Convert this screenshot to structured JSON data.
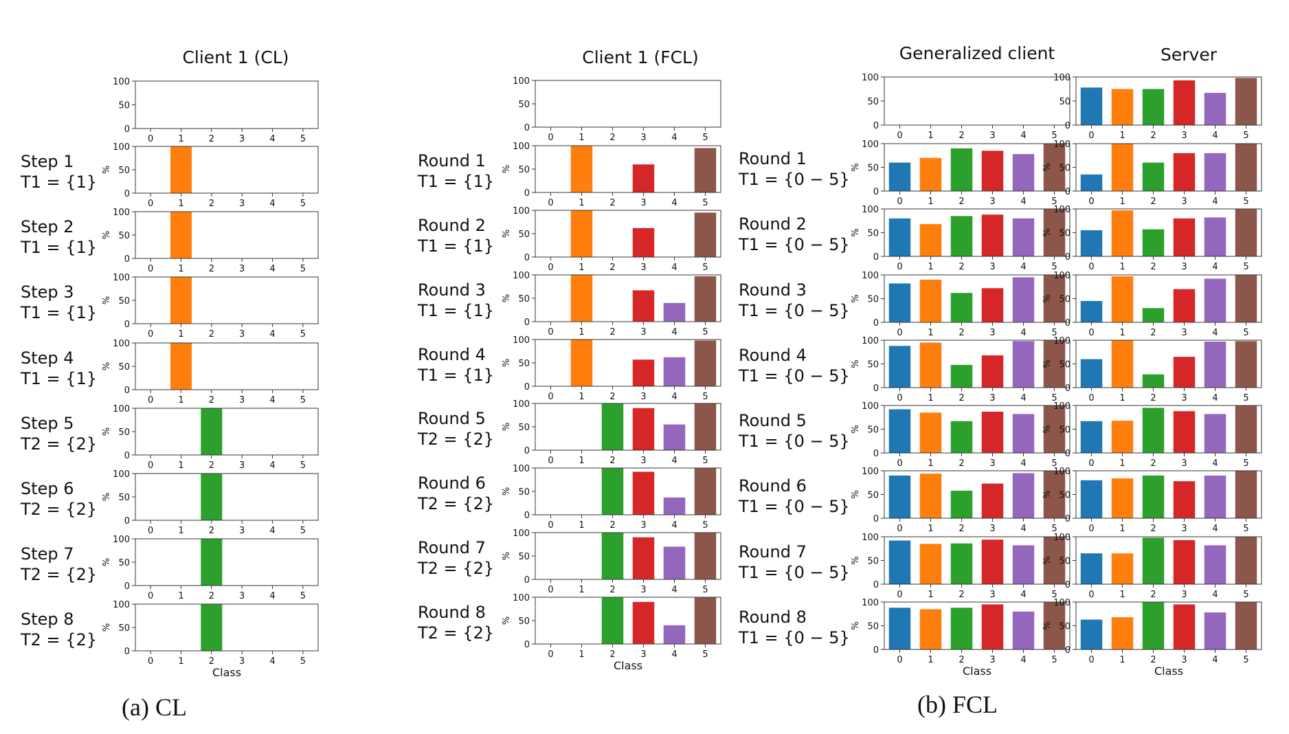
{
  "chart_data": {
    "type": "bar",
    "categories": [
      "0",
      "1",
      "2",
      "3",
      "4",
      "5"
    ],
    "ylim": [
      0,
      100
    ],
    "yticks": [
      0,
      50,
      100
    ],
    "ylabel": "%",
    "xlabel": "Class",
    "colors": [
      "#1f77b4",
      "#ff7f0e",
      "#2ca02c",
      "#d62728",
      "#9467bd",
      "#8c564b"
    ],
    "columns": [
      {
        "id": "cl",
        "title": "Client 1 (CL)",
        "initial": [
          0,
          0,
          0,
          0,
          0,
          0
        ],
        "rows": [
          {
            "label": "Step 1",
            "task": "T1 = {1}",
            "values": [
              0,
              100,
              0,
              0,
              0,
              0
            ]
          },
          {
            "label": "Step 2",
            "task": "T1 = {1}",
            "values": [
              0,
              100,
              0,
              0,
              0,
              0
            ]
          },
          {
            "label": "Step 3",
            "task": "T1 = {1}",
            "values": [
              0,
              100,
              0,
              0,
              0,
              0
            ]
          },
          {
            "label": "Step 4",
            "task": "T1 = {1}",
            "values": [
              0,
              100,
              0,
              0,
              0,
              0
            ]
          },
          {
            "label": "Step 5",
            "task": "T2 = {2}",
            "values": [
              0,
              0,
              100,
              0,
              0,
              0
            ]
          },
          {
            "label": "Step 6",
            "task": "T2 = {2}",
            "values": [
              0,
              0,
              100,
              0,
              0,
              0
            ]
          },
          {
            "label": "Step 7",
            "task": "T2 = {2}",
            "values": [
              0,
              0,
              100,
              0,
              0,
              0
            ]
          },
          {
            "label": "Step 8",
            "task": "T2 = {2}",
            "values": [
              0,
              0,
              100,
              0,
              0,
              0
            ]
          }
        ]
      },
      {
        "id": "fcl",
        "title": "Client 1 (FCL)",
        "initial": [
          0,
          0,
          0,
          0,
          0,
          0
        ],
        "rows": [
          {
            "label": "Round 1",
            "task": "T1 = {1}",
            "values": [
              0,
              100,
              0,
              60,
              0,
              95
            ]
          },
          {
            "label": "Round 2",
            "task": "T1 = {1}",
            "values": [
              0,
              100,
              0,
              62,
              0,
              95
            ]
          },
          {
            "label": "Round 3",
            "task": "T1 = {1}",
            "values": [
              0,
              100,
              0,
              67,
              40,
              97
            ]
          },
          {
            "label": "Round 4",
            "task": "T1 = {1}",
            "values": [
              0,
              100,
              0,
              57,
              62,
              98
            ]
          },
          {
            "label": "Round 5",
            "task": "T2 = {2}",
            "values": [
              0,
              0,
              100,
              90,
              55,
              100
            ]
          },
          {
            "label": "Round 6",
            "task": "T2 = {2}",
            "values": [
              0,
              0,
              100,
              92,
              37,
              100
            ]
          },
          {
            "label": "Round 7",
            "task": "T2 = {2}",
            "values": [
              0,
              0,
              100,
              90,
              70,
              100
            ]
          },
          {
            "label": "Round 8",
            "task": "T2 = {2}",
            "values": [
              0,
              0,
              100,
              90,
              40,
              100
            ]
          }
        ]
      },
      {
        "id": "gen",
        "title": "Generalized client",
        "initial": [
          0,
          0,
          0,
          0,
          0,
          0
        ],
        "rows": [
          {
            "label": "Round 1",
            "task": "T1 = {0 − 5}",
            "values": [
              60,
              70,
              90,
              85,
              78,
              100
            ]
          },
          {
            "label": "Round 2",
            "task": "T1 = {0 − 5}",
            "values": [
              80,
              68,
              85,
              88,
              80,
              100
            ]
          },
          {
            "label": "Round 3",
            "task": "T1 = {0 − 5}",
            "values": [
              82,
              90,
              62,
              72,
              95,
              100
            ]
          },
          {
            "label": "Round 4",
            "task": "T1 = {0 − 5}",
            "values": [
              88,
              95,
              48,
              68,
              98,
              100
            ]
          },
          {
            "label": "Round 5",
            "task": "T1 = {0 − 5}",
            "values": [
              92,
              85,
              67,
              87,
              82,
              100
            ]
          },
          {
            "label": "Round 6",
            "task": "T1 = {0 − 5}",
            "values": [
              90,
              94,
              58,
              73,
              95,
              100
            ]
          },
          {
            "label": "Round 7",
            "task": "T1 = {0 − 5}",
            "values": [
              92,
              85,
              86,
              94,
              82,
              100
            ]
          },
          {
            "label": "Round 8",
            "task": "T1 = {0 − 5}",
            "values": [
              88,
              85,
              88,
              95,
              80,
              100
            ]
          }
        ]
      },
      {
        "id": "server",
        "title": "Server",
        "initial": [
          78,
          75,
          75,
          93,
          67,
          98
        ],
        "rows": [
          {
            "label": "",
            "task": "",
            "values": [
              35,
              100,
              60,
              80,
              80,
              100
            ]
          },
          {
            "label": "",
            "task": "",
            "values": [
              55,
              97,
              57,
              80,
              82,
              100
            ]
          },
          {
            "label": "",
            "task": "",
            "values": [
              45,
              97,
              30,
              70,
              92,
              100
            ]
          },
          {
            "label": "",
            "task": "",
            "values": [
              60,
              100,
              28,
              65,
              97,
              98
            ]
          },
          {
            "label": "",
            "task": "",
            "values": [
              67,
              68,
              95,
              88,
              82,
              100
            ]
          },
          {
            "label": "",
            "task": "",
            "values": [
              80,
              84,
              90,
              78,
              90,
              100
            ]
          },
          {
            "label": "",
            "task": "",
            "values": [
              65,
              65,
              98,
              93,
              82,
              100
            ]
          },
          {
            "label": "",
            "task": "",
            "values": [
              63,
              68,
              100,
              95,
              78,
              100
            ]
          }
        ]
      }
    ]
  },
  "captions": {
    "a": "(a)    CL",
    "b": "(b) FCL"
  }
}
